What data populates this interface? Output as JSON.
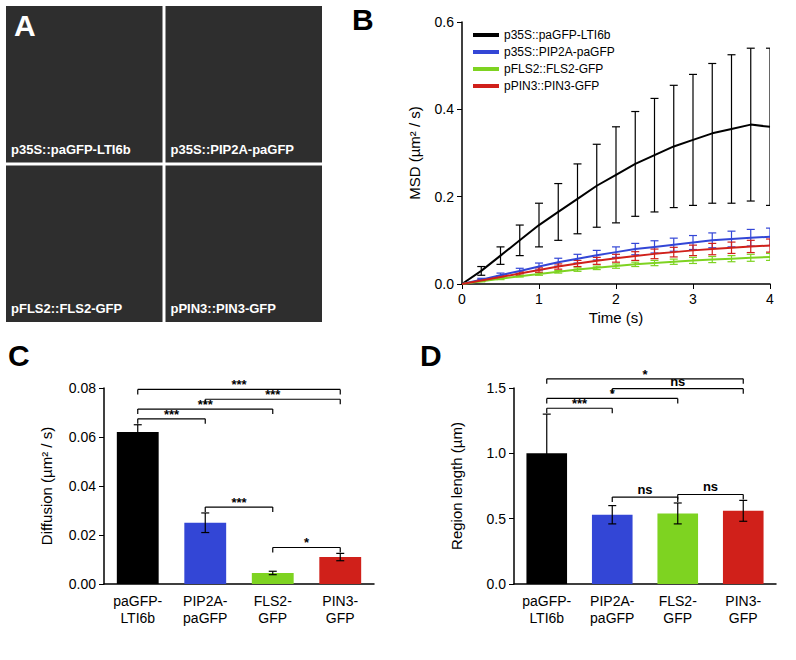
{
  "chart_data": [
    {
      "type": "image",
      "title": "A",
      "labels": [
        "p35S::paGFP-LTI6b",
        "p35S::PIP2A-paGFP",
        "pFLS2::FLS2-GFP",
        "pPIN3::PIN3-GFP"
      ]
    },
    {
      "type": "line",
      "title": "B",
      "x": [
        0,
        0.25,
        0.5,
        0.75,
        1,
        1.25,
        1.5,
        1.75,
        2,
        2.25,
        2.5,
        2.75,
        3,
        3.25,
        3.5,
        3.75,
        4
      ],
      "series": [
        {
          "name": "p35S::paGFP-LTI6b",
          "color": "#000000",
          "values": [
            0,
            0.03,
            0.065,
            0.1,
            0.135,
            0.165,
            0.195,
            0.225,
            0.25,
            0.275,
            0.295,
            0.315,
            0.33,
            0.345,
            0.355,
            0.365,
            0.36
          ],
          "errors": [
            0,
            0.01,
            0.02,
            0.035,
            0.05,
            0.065,
            0.08,
            0.095,
            0.11,
            0.12,
            0.13,
            0.14,
            0.15,
            0.16,
            0.17,
            0.175,
            0.18
          ]
        },
        {
          "name": "p35S::PIP2A-paGFP",
          "color": "#3346d6",
          "values": [
            0,
            0.01,
            0.02,
            0.03,
            0.04,
            0.05,
            0.058,
            0.066,
            0.073,
            0.08,
            0.085,
            0.09,
            0.095,
            0.1,
            0.103,
            0.106,
            0.108
          ],
          "errors": [
            0,
            0.003,
            0.005,
            0.006,
            0.008,
            0.009,
            0.01,
            0.011,
            0.012,
            0.013,
            0.014,
            0.015,
            0.016,
            0.017,
            0.018,
            0.019,
            0.02
          ]
        },
        {
          "name": "pFLS2::FLS2-GFP",
          "color": "#7ed321",
          "values": [
            0,
            0.006,
            0.012,
            0.018,
            0.023,
            0.028,
            0.033,
            0.037,
            0.041,
            0.045,
            0.048,
            0.051,
            0.054,
            0.056,
            0.058,
            0.06,
            0.062
          ],
          "errors": [
            0,
            0.001,
            0.002,
            0.002,
            0.003,
            0.003,
            0.004,
            0.004,
            0.005,
            0.005,
            0.006,
            0.006,
            0.007,
            0.007,
            0.007,
            0.008,
            0.008
          ]
        },
        {
          "name": "pPIN3::PIN3-GFP",
          "color": "#d0201a",
          "values": [
            0,
            0.008,
            0.016,
            0.024,
            0.032,
            0.04,
            0.047,
            0.053,
            0.059,
            0.064,
            0.069,
            0.073,
            0.077,
            0.08,
            0.083,
            0.086,
            0.088
          ],
          "errors": [
            0,
            0.002,
            0.003,
            0.004,
            0.005,
            0.006,
            0.007,
            0.008,
            0.009,
            0.01,
            0.011,
            0.011,
            0.012,
            0.013,
            0.013,
            0.014,
            0.015
          ]
        }
      ],
      "xlim": [
        0,
        4
      ],
      "xticks": [
        0,
        1,
        2,
        3,
        4
      ],
      "ylim": [
        0,
        0.6
      ],
      "yticks": [
        {
          "value": 0,
          "label": "0.0"
        },
        0.2,
        0.4,
        0.6
      ],
      "x_label": "Time (s)",
      "y_label": "MSD (µm² / s)",
      "legend": "top-left",
      "grid": false
    },
    {
      "type": "bar",
      "title": "C",
      "categories": [
        "paGFP-LTI6b",
        "PIP2A-paGFP",
        "FLS2-GFP",
        "PIN3-GFP"
      ],
      "values": [
        0.062,
        0.025,
        0.0045,
        0.011
      ],
      "errors": [
        0.003,
        0.004,
        0.0007,
        0.0015
      ],
      "colors": [
        "#000000",
        "#3346d6",
        "#7ed321",
        "#d0201a"
      ],
      "ylim": [
        0,
        0.08
      ],
      "yticks": [
        {
          "value": 0,
          "label": "0.00"
        },
        {
          "value": 0.02,
          "label": "0.02"
        },
        {
          "value": 0.04,
          "label": "0.04"
        },
        {
          "value": 0.06,
          "label": "0.06"
        },
        {
          "value": 0.08,
          "label": "0.08"
        }
      ],
      "y_label": "Diffusion (µm² / s)",
      "grid": false,
      "annotations": [
        {
          "pair": [
            "paGFP-LTI6b",
            "PIP2A-paGFP"
          ],
          "label": "***"
        },
        {
          "pair": [
            "paGFP-LTI6b",
            "FLS2-GFP"
          ],
          "label": "***"
        },
        {
          "pair": [
            "paGFP-LTI6b",
            "PIN3-GFP"
          ],
          "label": "***"
        },
        {
          "pair": [
            "PIP2A-paGFP",
            "FLS2-GFP"
          ],
          "label": "***"
        },
        {
          "pair": [
            "PIP2A-paGFP",
            "PIN3-GFP"
          ],
          "label": "***"
        },
        {
          "pair": [
            "FLS2-GFP",
            "PIN3-GFP"
          ],
          "label": "*"
        }
      ]
    },
    {
      "type": "bar",
      "title": "D",
      "categories": [
        "paGFP-LTI6b",
        "PIP2A-paGFP",
        "FLS2-GFP",
        "PIN3-GFP"
      ],
      "values": [
        1.0,
        0.53,
        0.54,
        0.56
      ],
      "errors": [
        0.3,
        0.07,
        0.08,
        0.08
      ],
      "colors": [
        "#000000",
        "#3346d6",
        "#7ed321",
        "#d0201a"
      ],
      "ylim": [
        0,
        1.5
      ],
      "yticks": [
        {
          "value": 0,
          "label": "0.0"
        },
        {
          "value": 0.5,
          "label": "0.5"
        },
        {
          "value": 1,
          "label": "1.0"
        },
        1.5
      ],
      "y_label": "Region length (µm)",
      "grid": false,
      "annotations": [
        {
          "pair": [
            "paGFP-LTI6b",
            "PIP2A-paGFP"
          ],
          "label": "***"
        },
        {
          "pair": [
            "paGFP-LTI6b",
            "FLS2-GFP"
          ],
          "label": "*"
        },
        {
          "pair": [
            "paGFP-LTI6b",
            "PIN3-GFP"
          ],
          "label": "*"
        },
        {
          "pair": [
            "PIP2A-paGFP",
            "FLS2-GFP"
          ],
          "label": "ns"
        },
        {
          "pair": [
            "PIP2A-paGFP",
            "PIN3-GFP"
          ],
          "label": "ns"
        },
        {
          "pair": [
            "FLS2-GFP",
            "PIN3-GFP"
          ],
          "label": "ns"
        }
      ]
    }
  ]
}
